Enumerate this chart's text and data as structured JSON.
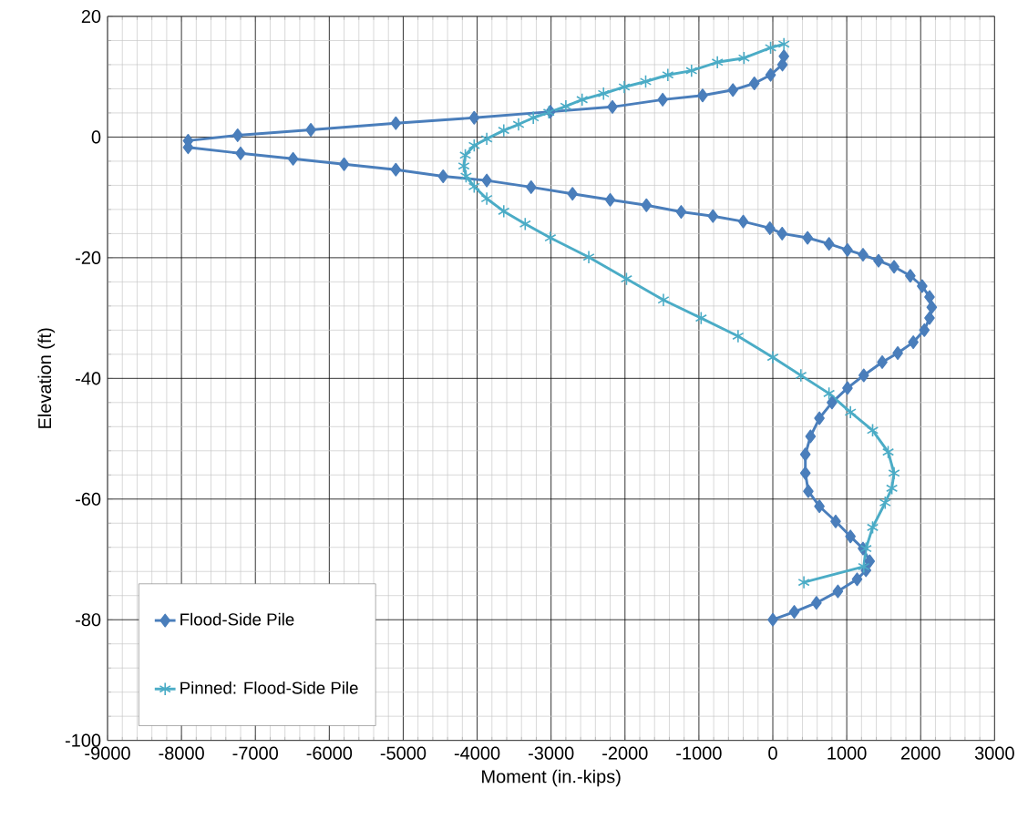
{
  "chart_data": {
    "type": "line",
    "xlabel": "Moment (in.-kips)",
    "ylabel": "Elevation (ft)",
    "xlim": [
      -9000,
      3000
    ],
    "xticks": [
      -9000,
      -8000,
      -7000,
      -6000,
      -5000,
      -4000,
      -3000,
      -2000,
      -1000,
      0,
      1000,
      2000,
      3000
    ],
    "ylim": [
      -100,
      20
    ],
    "yticks": [
      -100,
      -80,
      -60,
      -40,
      -20,
      0,
      20
    ],
    "grid": true,
    "legend": "bottom left",
    "line_style": "solid",
    "series": [
      {
        "name": "Flood-Side Pile",
        "color": "#4a7ebb",
        "marker": "diamond",
        "x": [
          150,
          130,
          -30,
          -250,
          -540,
          -950,
          -1490,
          -2170,
          -3010,
          -4040,
          -5100,
          -6250,
          -7240,
          -7910,
          -7910,
          -7200,
          -6490,
          -5800,
          -5100,
          -4460,
          -3870,
          -3270,
          -2710,
          -2200,
          -1710,
          -1240,
          -810,
          -400,
          -40,
          126,
          470,
          760,
          1010,
          1220,
          1430,
          1640,
          1860,
          2020,
          2120,
          2150,
          2120,
          2050,
          1900,
          1690,
          1480,
          1230,
          1010,
          800,
          630,
          510,
          440,
          440,
          480,
          630,
          850,
          1050,
          1220,
          1310,
          1260,
          1140,
          880,
          590,
          290,
          0
        ],
        "values": [
          13.4,
          12,
          10.3,
          8.9,
          7.8,
          6.9,
          6.2,
          5,
          4.2,
          3.2,
          2.3,
          1.2,
          0.3,
          -0.6,
          -1.7,
          -2.7,
          -3.6,
          -4.5,
          -5.4,
          -6.5,
          -7.2,
          -8.3,
          -9.4,
          -10.4,
          -11.3,
          -12.4,
          -13.1,
          -14,
          -15.1,
          -16,
          -16.7,
          -17.7,
          -18.7,
          -19.5,
          -20.5,
          -21.5,
          -23,
          -24.7,
          -26.5,
          -28.2,
          -30,
          -32,
          -34,
          -35.8,
          -37.3,
          -39.5,
          -41.6,
          -44,
          -46.6,
          -49.6,
          -52.6,
          -55.7,
          -58.7,
          -61.2,
          -63.7,
          -66.2,
          -68.2,
          -70.3,
          -71.8,
          -73.3,
          -75.3,
          -77.2,
          -78.7,
          -80
        ]
      },
      {
        "name": "Pinned: Flood-Side Pile",
        "color": "#4bacc6",
        "marker": "cross",
        "x": [
          150,
          -30,
          -390,
          -750,
          -1100,
          -1420,
          -1720,
          -2010,
          -2290,
          -2580,
          -2800,
          -3030,
          -3240,
          -3440,
          -3640,
          -3870,
          -4040,
          -4160,
          -4180,
          -4150,
          -4040,
          -3870,
          -3640,
          -3350,
          -3010,
          -2490,
          -1980,
          -1480,
          -970,
          -470,
          0,
          380,
          760,
          1050,
          1350,
          1560,
          1640,
          1610,
          1520,
          1350,
          1260,
          1230,
          420
        ],
        "values": [
          15.4,
          14.8,
          13.1,
          12.4,
          11,
          10.3,
          9.2,
          8.3,
          7.2,
          6.2,
          5.1,
          4.1,
          3.2,
          2.1,
          1.1,
          -0.3,
          -1.4,
          -3,
          -4.8,
          -6.5,
          -8.2,
          -10.2,
          -12.3,
          -14.4,
          -16.7,
          -19.9,
          -23.5,
          -27,
          -30,
          -33,
          -36.5,
          -39.5,
          -42.5,
          -45.6,
          -48.6,
          -52.2,
          -55.7,
          -58.2,
          -60.6,
          -64.7,
          -68.2,
          -71.2,
          -73.8
        ]
      }
    ]
  }
}
